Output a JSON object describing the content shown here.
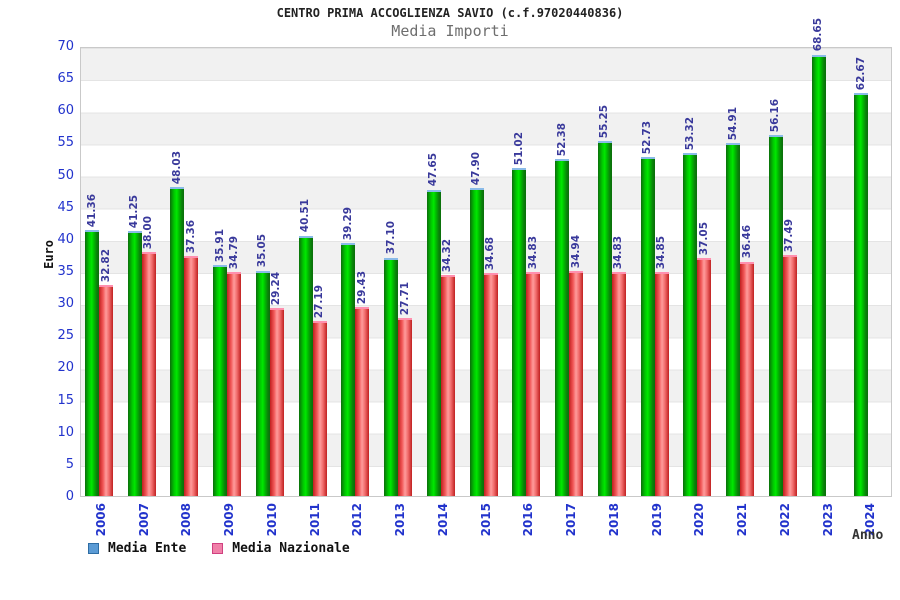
{
  "title": "CENTRO PRIMA ACCOGLIENZA SAVIO (c.f.97020440836)",
  "subtitle": "Media Importi",
  "chart_data": {
    "type": "bar",
    "title": "CENTRO PRIMA ACCOGLIENZA SAVIO (c.f.97020440836)",
    "subtitle": "Media Importi",
    "xlabel": "Anno",
    "ylabel": "Euro",
    "ylim": [
      0,
      70
    ],
    "y_ticks": [
      0,
      5,
      10,
      15,
      20,
      25,
      30,
      35,
      40,
      45,
      50,
      55,
      60,
      65,
      70
    ],
    "grid": "horizontal alternating bands every 5 units",
    "legend_position": "bottom-left",
    "categories": [
      "2006",
      "2007",
      "2008",
      "2009",
      "2010",
      "2011",
      "2012",
      "2013",
      "2014",
      "2015",
      "2016",
      "2017",
      "2018",
      "2019",
      "2020",
      "2021",
      "2022",
      "2023",
      "2024"
    ],
    "series": [
      {
        "name": "Media Ente",
        "values": [
          41.36,
          41.25,
          48.03,
          35.91,
          35.05,
          40.51,
          39.29,
          37.1,
          47.65,
          47.9,
          51.02,
          52.38,
          55.25,
          52.73,
          53.32,
          54.91,
          56.16,
          68.65,
          62.67
        ]
      },
      {
        "name": "Media Nazionale",
        "values": [
          32.82,
          38.0,
          37.36,
          34.79,
          29.24,
          27.19,
          29.43,
          27.71,
          34.32,
          34.68,
          34.83,
          34.94,
          34.83,
          34.85,
          37.05,
          36.46,
          37.49,
          null,
          null
        ]
      }
    ]
  },
  "colors": {
    "bar_ente_bright": "#00e800",
    "bar_ente_dark": "#0b6e0b",
    "bar_ente_cap": "#8abbe8",
    "bar_nazionale_bright": "#ff9c9c",
    "bar_nazionale_dark": "#c02020",
    "bar_nazionale_cap": "#ff8fae",
    "legend_ente_swatch": "#5b9bd5",
    "legend_ente_border": "#2e6da4",
    "legend_nazionale_swatch": "#f080a8",
    "legend_nazionale_border": "#d04080",
    "axis_tick_text": "#2233cc",
    "value_label_text": "#39399b",
    "band_gray": "#f1f1f1"
  }
}
